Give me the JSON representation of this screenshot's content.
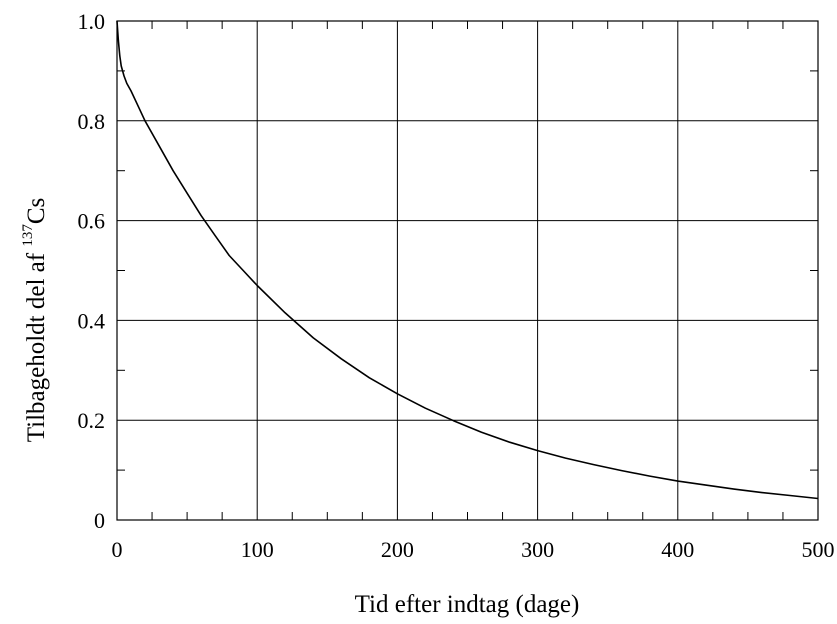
{
  "chart_data": {
    "type": "line",
    "title": "",
    "xlabel": "Tid efter indtag (dage)",
    "ylabel": {
      "text": "Tilbageholdt del af ",
      "superscript": "137",
      "element": "Cs"
    },
    "xlim": [
      0,
      500
    ],
    "ylim": [
      0,
      1
    ],
    "x_ticks": [
      0,
      100,
      200,
      300,
      400,
      500
    ],
    "x_tick_labels": [
      "0",
      "100",
      "200",
      "300",
      "400",
      "500"
    ],
    "y_ticks": [
      0,
      0.2,
      0.4,
      0.6,
      0.8,
      1.0
    ],
    "y_tick_labels": [
      "0",
      "0.2",
      "0.4",
      "0.6",
      "0.8",
      "1.0"
    ],
    "grid": true,
    "legend": "none",
    "series": [
      {
        "color": "#000000",
        "x": [
          0,
          1,
          2,
          3,
          5,
          7,
          10,
          15,
          20,
          30,
          40,
          50,
          60,
          70,
          80,
          90,
          100,
          120,
          140,
          160,
          180,
          200,
          220,
          240,
          260,
          280,
          300,
          320,
          340,
          360,
          380,
          400,
          420,
          440,
          460,
          480,
          500
        ],
        "y": [
          1.0,
          0.96,
          0.93,
          0.91,
          0.89,
          0.875,
          0.86,
          0.83,
          0.8,
          0.75,
          0.7,
          0.655,
          0.61,
          0.57,
          0.53,
          0.5,
          0.47,
          0.415,
          0.365,
          0.323,
          0.285,
          0.253,
          0.224,
          0.199,
          0.176,
          0.156,
          0.139,
          0.124,
          0.111,
          0.099,
          0.088,
          0.078,
          0.07,
          0.062,
          0.055,
          0.049,
          0.043
        ]
      }
    ]
  }
}
